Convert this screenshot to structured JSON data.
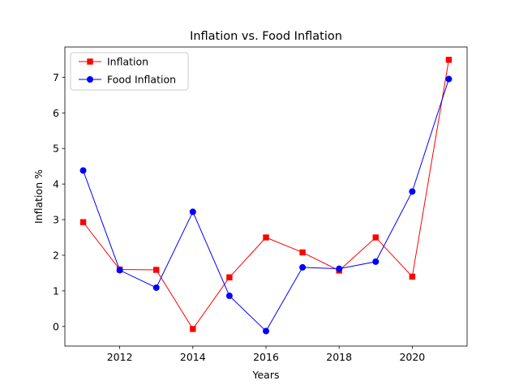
{
  "chart_data": {
    "type": "line",
    "title": "Inflation vs. Food Inflation",
    "xlabel": "Years",
    "ylabel": "Inflation %",
    "x": [
      2011,
      2012,
      2013,
      2014,
      2015,
      2016,
      2017,
      2018,
      2019,
      2020,
      2021
    ],
    "xticks": [
      2012,
      2014,
      2016,
      2018,
      2020
    ],
    "yticks": [
      0,
      1,
      2,
      3,
      4,
      5,
      6,
      7
    ],
    "xlim": [
      2010.5,
      2021.5
    ],
    "ylim": [
      -0.55,
      7.85
    ],
    "grid": false,
    "legend_position": "top-left",
    "series": [
      {
        "name": "Inflation",
        "color": "#ff0000",
        "marker": "square",
        "values": [
          2.93,
          1.6,
          1.59,
          -0.07,
          1.38,
          2.5,
          2.08,
          1.57,
          2.5,
          1.4,
          7.49
        ]
      },
      {
        "name": "Food Inflation",
        "color": "#0000ff",
        "marker": "circle",
        "values": [
          4.38,
          1.58,
          1.09,
          3.22,
          0.86,
          -0.13,
          1.66,
          1.62,
          1.82,
          3.79,
          6.95
        ]
      }
    ]
  }
}
